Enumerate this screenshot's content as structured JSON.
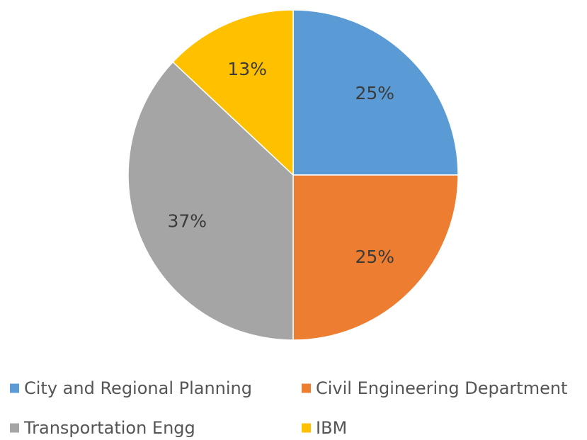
{
  "chart_data": {
    "type": "pie",
    "title": "",
    "start_angle_deg": 0,
    "direction": "clockwise",
    "legend_position": "bottom",
    "slices": [
      {
        "name": "City and Regional Planning",
        "value": 25,
        "label": "25%",
        "color": "#5b9bd5"
      },
      {
        "name": "Civil Engineering Department",
        "value": 25,
        "label": "25%",
        "color": "#ed7d31"
      },
      {
        "name": "Transportation Engg",
        "value": 37,
        "label": "37%",
        "color": "#a5a5a5"
      },
      {
        "name": "IBM",
        "value": 13,
        "label": "13%",
        "color": "#ffc000"
      }
    ]
  }
}
